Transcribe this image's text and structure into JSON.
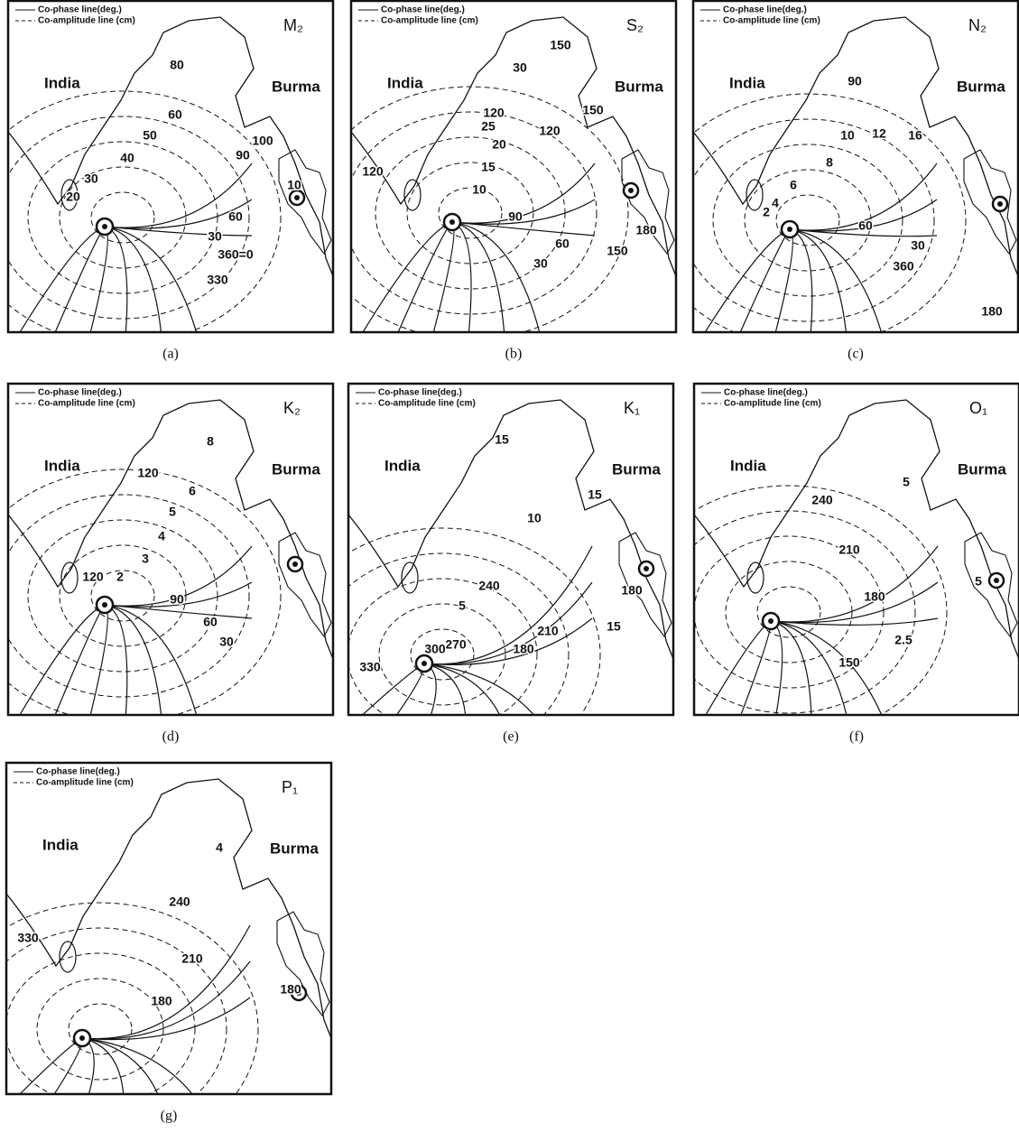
{
  "panels": [
    {
      "legend": {
        "co_phase": "Co-phase line(deg.)",
        "co_amplitude": "Co-amplitude line (cm)"
      },
      "constituent": "M₂",
      "india": "India",
      "burma": "Burma",
      "labels": [
        "80",
        "60",
        "50",
        "40",
        "30",
        "20",
        "90",
        "100",
        "60",
        "30",
        "360=0",
        "330",
        "10"
      ],
      "caption": "(a)"
    },
    {
      "legend": {
        "co_phase": "Co-phase line(deg.)",
        "co_amplitude": "Co-amplitude line (cm)"
      },
      "constituent": "S₂",
      "india": "India",
      "burma": "Burma",
      "labels": [
        "150",
        "30",
        "120",
        "25",
        "20",
        "15",
        "10",
        "120",
        "120",
        "150",
        "90",
        "60",
        "30",
        "150",
        "180"
      ],
      "caption": "(b)"
    },
    {
      "legend": {
        "co_phase": "Co-phase line(deg.)",
        "co_amplitude": "Co-amplitude line (cm)"
      },
      "constituent": "N₂",
      "india": "India",
      "burma": "Burma",
      "labels": [
        "90",
        "12",
        "10",
        "8",
        "6",
        "4",
        "2",
        "16",
        "60",
        "30",
        "360",
        "180"
      ],
      "caption": "(c)"
    },
    {
      "legend": {
        "co_phase": "Co-phase line(deg.)",
        "co_amplitude": "Co-amplitude line (cm)"
      },
      "constituent": "K₂",
      "india": "India",
      "burma": "Burma",
      "labels": [
        "8",
        "120",
        "6",
        "5",
        "4",
        "3",
        "2",
        "120",
        "90",
        "60",
        "30"
      ],
      "caption": "(d)"
    },
    {
      "legend": {
        "co_phase": "Co-phase line(deg.)",
        "co_amplitude": "Co-amplitude line (cm)"
      },
      "constituent": "K₁",
      "india": "India",
      "burma": "Burma",
      "labels": [
        "15",
        "15",
        "10",
        "180",
        "240",
        "5",
        "210",
        "270",
        "300",
        "330",
        "180",
        "15"
      ],
      "caption": "(e)"
    },
    {
      "legend": {
        "co_phase": "Co-phase line(deg.)",
        "co_amplitude": "Co-amplitude line (cm)"
      },
      "constituent": "O₁",
      "india": "India",
      "burma": "Burma",
      "labels": [
        "240",
        "5",
        "210",
        "180",
        "2.5",
        "150",
        "5"
      ],
      "caption": "(f)"
    },
    {
      "legend": {
        "co_phase": "Co-phase line(deg.)",
        "co_amplitude": "Co-amplitude line (cm)"
      },
      "constituent": "P₁",
      "india": "India",
      "burma": "Burma",
      "labels": [
        "4",
        "240",
        "210",
        "180",
        "330",
        "180"
      ],
      "caption": "(g)"
    }
  ]
}
